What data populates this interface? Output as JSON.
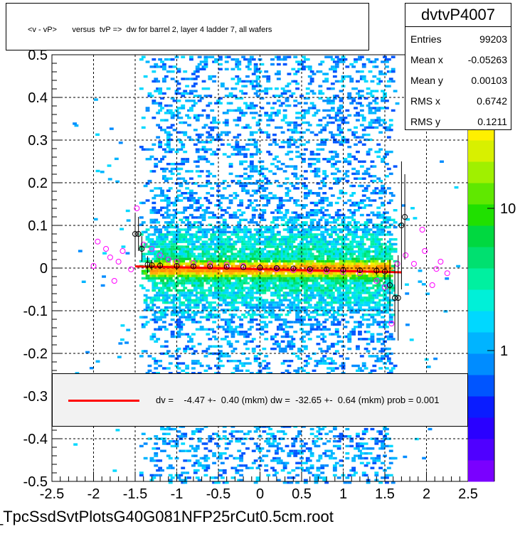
{
  "title": "<v - vP>       versus  tvP =>  dw for barrel 2, layer 4 ladder 7, all wafers",
  "stats": {
    "name": "dvtvP4007",
    "rows": [
      {
        "label": "Entries",
        "value": "99203"
      },
      {
        "label": "Mean x",
        "value": "-0.05263"
      },
      {
        "label": "Mean y",
        "value": "0.00103"
      },
      {
        "label": "RMS x",
        "value": "0.6742"
      },
      {
        "label": "RMS y",
        "value": "0.1211"
      }
    ]
  },
  "legend": {
    "text": "dv =    -4.47 +-  0.40 (mkm) dw =  -32.65 +-  0.64 (mkm) prob = 0.001",
    "line_color": "#ff0000"
  },
  "filename": "_TpcSsdSvtPlotsG40G081NFP25rCut0.5cm.root",
  "chart_data": {
    "type": "heatmap",
    "xlim": [
      -2.5,
      2.5
    ],
    "ylim": [
      -0.5,
      0.5
    ],
    "x_ticks": [
      "-2.5",
      "-2",
      "-1.5",
      "-1",
      "-0.5",
      "0",
      "0.5",
      "1",
      "1.5",
      "2",
      "2.5"
    ],
    "y_ticks": [
      "-0.5",
      "-0.4",
      "-0.3",
      "-0.2",
      "-0.1",
      "0",
      "0.1",
      "0.2",
      "0.3",
      "0.4",
      "0.5"
    ],
    "z_ticks": [
      "1",
      "10"
    ],
    "grid": true,
    "log_z": true,
    "density_x_range": [
      -1.35,
      1.55
    ],
    "fit_line": {
      "x": [
        -1.5,
        1.7
      ],
      "y": [
        0.004,
        -0.01
      ],
      "color": "#ff0000"
    },
    "profile_black": [
      {
        "x": -1.5,
        "y": 0.08,
        "err": 0.05
      },
      {
        "x": -1.46,
        "y": 0.08,
        "err": 0.04
      },
      {
        "x": -1.42,
        "y": 0.045,
        "err": 0.03
      },
      {
        "x": -1.35,
        "y": 0.008,
        "err": 0.02
      },
      {
        "x": -1.3,
        "y": 0.007,
        "err": 0.012
      },
      {
        "x": -1.2,
        "y": 0.006,
        "err": 0.008
      },
      {
        "x": -1.0,
        "y": 0.005,
        "err": 0.005
      },
      {
        "x": -0.8,
        "y": 0.004,
        "err": 0.004
      },
      {
        "x": -0.6,
        "y": 0.004,
        "err": 0.003
      },
      {
        "x": -0.4,
        "y": 0.003,
        "err": 0.003
      },
      {
        "x": -0.2,
        "y": 0.002,
        "err": 0.003
      },
      {
        "x": 0.0,
        "y": 0.001,
        "err": 0.003
      },
      {
        "x": 0.2,
        "y": 0.0,
        "err": 0.003
      },
      {
        "x": 0.4,
        "y": -0.001,
        "err": 0.003
      },
      {
        "x": 0.6,
        "y": -0.002,
        "err": 0.003
      },
      {
        "x": 0.8,
        "y": -0.003,
        "err": 0.004
      },
      {
        "x": 1.0,
        "y": -0.004,
        "err": 0.005
      },
      {
        "x": 1.2,
        "y": -0.005,
        "err": 0.006
      },
      {
        "x": 1.4,
        "y": -0.006,
        "err": 0.01
      },
      {
        "x": 1.5,
        "y": -0.008,
        "err": 0.02
      },
      {
        "x": 1.56,
        "y": -0.04,
        "err": 0.06
      },
      {
        "x": 1.62,
        "y": -0.07,
        "err": 0.08
      },
      {
        "x": 1.66,
        "y": -0.07,
        "err": 0.1
      },
      {
        "x": 1.7,
        "y": 0.1,
        "err": 0.15
      },
      {
        "x": 1.74,
        "y": 0.12,
        "err": 0.1
      }
    ],
    "profile_magenta": [
      {
        "x": -2.0,
        "y": 0.005,
        "err": 0.0
      },
      {
        "x": -1.95,
        "y": 0.062,
        "err": 0.0
      },
      {
        "x": -1.85,
        "y": 0.045,
        "err": 0.0
      },
      {
        "x": -1.8,
        "y": 0.025,
        "err": 0.0
      },
      {
        "x": -1.75,
        "y": -0.03,
        "err": 0.0
      },
      {
        "x": -1.7,
        "y": 0.015,
        "err": 0.0
      },
      {
        "x": -1.65,
        "y": 0.04,
        "err": 0.0
      },
      {
        "x": -1.55,
        "y": -0.003,
        "err": 0.0
      },
      {
        "x": -1.48,
        "y": 0.14,
        "err": 0.0
      },
      {
        "x": -1.4,
        "y": 0.055,
        "err": 0.0
      },
      {
        "x": -1.3,
        "y": 0.045,
        "err": 0.0
      },
      {
        "x": -1.2,
        "y": 0.03,
        "err": 0.0
      },
      {
        "x": -1.1,
        "y": 0.02,
        "err": 0.0
      },
      {
        "x": -1.0,
        "y": 0.015,
        "err": 0.0
      },
      {
        "x": -0.8,
        "y": 0.012,
        "err": 0.0
      },
      {
        "x": -0.6,
        "y": 0.01,
        "err": 0.0
      },
      {
        "x": -0.4,
        "y": 0.008,
        "err": 0.0
      },
      {
        "x": -0.2,
        "y": 0.005,
        "err": 0.0
      },
      {
        "x": 0.0,
        "y": 0.0,
        "err": 0.0
      },
      {
        "x": 0.2,
        "y": -0.002,
        "err": 0.0
      },
      {
        "x": 0.4,
        "y": -0.005,
        "err": 0.0
      },
      {
        "x": 0.6,
        "y": -0.006,
        "err": 0.0
      },
      {
        "x": 0.8,
        "y": -0.008,
        "err": 0.0
      },
      {
        "x": 1.0,
        "y": -0.01,
        "err": 0.0
      },
      {
        "x": 1.2,
        "y": -0.012,
        "err": 0.0
      },
      {
        "x": 1.4,
        "y": -0.03,
        "err": 0.0
      },
      {
        "x": 1.5,
        "y": -0.045,
        "err": 0.0
      },
      {
        "x": 1.58,
        "y": -0.13,
        "err": 0.0
      },
      {
        "x": 1.65,
        "y": 0.01,
        "err": 0.0
      },
      {
        "x": 1.75,
        "y": 0.03,
        "err": 0.0
      },
      {
        "x": 1.85,
        "y": 0.01,
        "err": 0.0
      },
      {
        "x": 1.95,
        "y": 0.09,
        "err": 0.0
      },
      {
        "x": 1.98,
        "y": 0.04,
        "err": 0.0
      },
      {
        "x": 2.07,
        "y": -0.04,
        "err": 0.0
      },
      {
        "x": 2.12,
        "y": -0.002,
        "err": 0.0
      },
      {
        "x": 2.17,
        "y": 0.015,
        "err": 0.0
      },
      {
        "x": 2.25,
        "y": -0.012,
        "err": 0.0
      }
    ]
  }
}
